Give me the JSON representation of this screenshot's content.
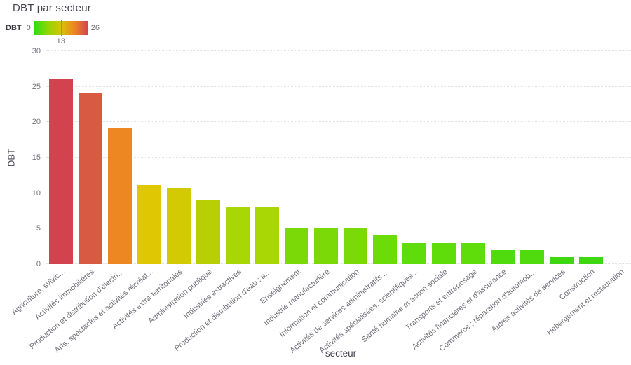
{
  "title": "DBT par secteur",
  "legend": {
    "label": "DBT",
    "min": "0",
    "max": "26",
    "midpoint": "13",
    "gradient_colors": [
      "#2ddf0d",
      "#8ed606",
      "#d6c404",
      "#ec8722",
      "#d34350"
    ]
  },
  "chart_data": {
    "type": "bar",
    "title": "DBT par secteur",
    "xlabel": "secteur",
    "ylabel": "DBT",
    "ylim": [
      0,
      30
    ],
    "yticks": [
      0,
      5,
      10,
      15,
      20,
      25,
      30
    ],
    "grid": "horizontal dotted lines, no axis spines",
    "legend_position": "top-left colorbar, range 0-26, midpoint tick 13",
    "colorbar": {
      "label": "DBT",
      "min": 0,
      "mid": 13,
      "max": 26
    },
    "categories": [
      "Agriculture, sylvic...",
      "Activités immobilières",
      "Production et distribution d'électri...",
      "Arts, spectacles et activités récréat...",
      "Activités extra-territoriales",
      "Administration publique",
      "Industries extractives",
      "Production et distribution d'eau ; a...",
      "Enseignement",
      "Industrie manufacturière",
      "Information et communication",
      "Activités de services administratifs ...",
      "Activités spécialisées, scientifiques...",
      "Santé humaine et action sociale",
      "Transports et entreposage",
      "Activités financières et d'assurance",
      "Commerce ; réparation d'automob...",
      "Autres activités de services",
      "Construction",
      "Hébergement et restauration"
    ],
    "values": [
      26.1,
      24.1,
      19.1,
      11.2,
      10.7,
      9.1,
      8.1,
      8.1,
      5,
      5,
      5,
      4,
      3,
      3,
      3,
      2,
      2,
      1,
      1,
      0
    ],
    "bar_colors": [
      "#d3434f",
      "#d85a42",
      "#ec8722",
      "#dfc703",
      "#d3c904",
      "#b8cf06",
      "#a8d705",
      "#a8d705",
      "#7bd908",
      "#7bd908",
      "#7bd908",
      "#6cdc08",
      "#5edd0b",
      "#5edd0b",
      "#5edd0b",
      "#4fdb0e",
      "#4fdb0e",
      "#3fd711",
      "#3fd711",
      "#3fd711"
    ]
  }
}
